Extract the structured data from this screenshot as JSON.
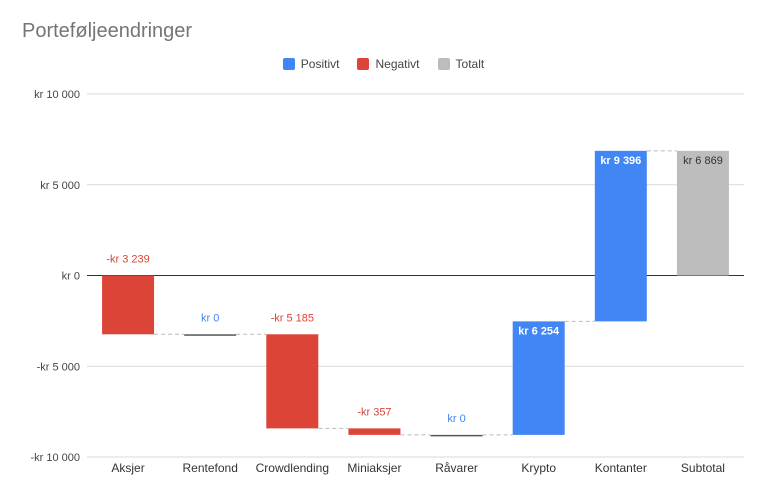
{
  "chart_data": {
    "type": "waterfall",
    "title": "Porteføljeendringer",
    "legend": [
      {
        "name": "Positivt",
        "color": "#4285f4"
      },
      {
        "name": "Negativt",
        "color": "#db4437"
      },
      {
        "name": "Totalt",
        "color": "#bdbdbd"
      }
    ],
    "legend_position": "top-center",
    "ylim": [
      -10000,
      10000
    ],
    "yticks": [
      10000,
      5000,
      0,
      -5000,
      -10000
    ],
    "ytick_labels": [
      "kr  10 000",
      "kr  5 000",
      "kr   0",
      "-kr  5 000",
      "-kr  10 000"
    ],
    "grid": true,
    "categories": [
      "Aksjer",
      "Rentefond",
      "Crowdlending",
      "Miniaksjer",
      "Råvarer",
      "Krypto",
      "Kontanter",
      "Subtotal"
    ],
    "values": [
      -3239,
      0,
      -5185,
      -357,
      0,
      6254,
      9396,
      6869
    ],
    "kinds": [
      "negative",
      "positive",
      "negative",
      "negative",
      "positive",
      "positive",
      "positive",
      "total"
    ],
    "data_labels": [
      "-kr  3 239",
      "kr  0",
      "-kr  5 185",
      "-kr  357",
      "kr  0",
      "kr  6 254",
      "kr  9 396",
      "kr  6 869"
    ],
    "colors": {
      "positive": "#4285f4",
      "negative": "#db4437",
      "total": "#bdbdbd"
    }
  }
}
